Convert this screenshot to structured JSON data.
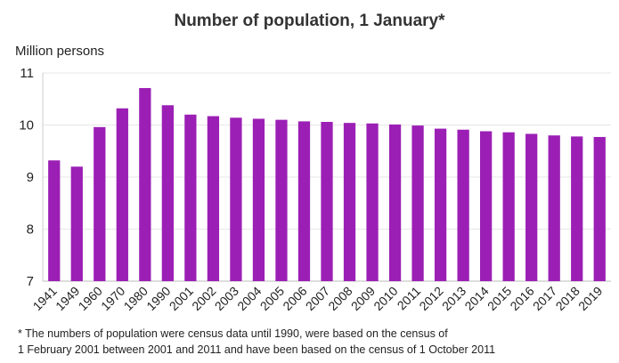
{
  "chart_data": {
    "type": "bar",
    "title": "Number of population, 1 January*",
    "ylabel": "Million persons",
    "xlabel": "",
    "ylim": [
      7,
      11
    ],
    "yticks": [
      7,
      8,
      9,
      10,
      11
    ],
    "grid": true,
    "bar_color": "#9b1fb5",
    "categories": [
      "1941",
      "1949",
      "1960",
      "1970",
      "1980",
      "1990",
      "2001",
      "2002",
      "2003",
      "2004",
      "2005",
      "2006",
      "2007",
      "2008",
      "2009",
      "2010",
      "2011",
      "2012",
      "2013",
      "2014",
      "2015",
      "2016",
      "2017",
      "2018",
      "2019"
    ],
    "values": [
      9.32,
      9.2,
      9.96,
      10.32,
      10.71,
      10.38,
      10.2,
      10.17,
      10.14,
      10.12,
      10.1,
      10.07,
      10.06,
      10.04,
      10.03,
      10.01,
      9.99,
      9.93,
      9.91,
      9.88,
      9.86,
      9.83,
      9.8,
      9.78,
      9.77
    ]
  },
  "footnote": {
    "line1": "* The numbers of population were census data until 1990, were based on the census of",
    "line2": "1 February 2001 between 2001 and 2011 and have been based on the census of 1 October 2011"
  }
}
